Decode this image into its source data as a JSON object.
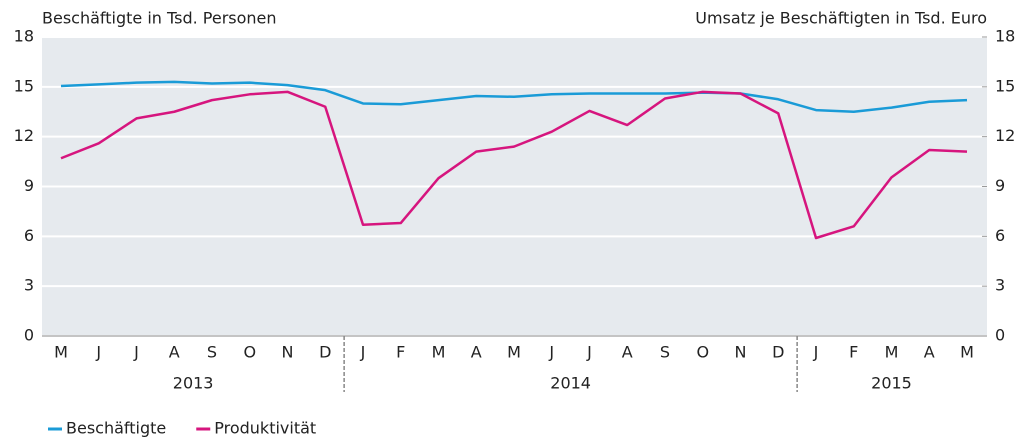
{
  "chart_data": {
    "type": "line",
    "y_label": "Beschäftigte in Tsd. Personen",
    "y2_label": "Umsatz je Beschäftigten in Tsd. Euro",
    "categories": [
      "M",
      "J",
      "J",
      "A",
      "S",
      "O",
      "N",
      "D",
      "J",
      "F",
      "M",
      "A",
      "M",
      "J",
      "J",
      "A",
      "S",
      "O",
      "N",
      "D",
      "J",
      "F",
      "M",
      "A",
      "M"
    ],
    "year_labels": [
      "2013",
      "2014",
      "2015"
    ],
    "series": [
      {
        "name": "Beschäftigte",
        "color": "#1a9bd7",
        "values": [
          15.05,
          15.15,
          15.25,
          15.3,
          15.2,
          15.25,
          15.1,
          14.8,
          14.0,
          13.95,
          14.2,
          14.45,
          14.4,
          14.55,
          14.6,
          14.6,
          14.6,
          14.65,
          14.6,
          14.25,
          13.6,
          13.5,
          13.75,
          14.1,
          14.2
        ]
      },
      {
        "name": "Produktivität",
        "color": "#d6157e",
        "axis": "y2",
        "values": [
          10.7,
          11.6,
          13.1,
          13.5,
          14.2,
          14.55,
          14.7,
          13.8,
          6.7,
          6.8,
          9.5,
          11.1,
          11.4,
          12.3,
          13.55,
          12.7,
          14.3,
          14.7,
          14.6,
          13.4,
          5.9,
          6.6,
          9.55,
          11.2,
          11.1
        ]
      }
    ],
    "ylim": [
      0,
      18
    ],
    "yticks": [
      0,
      3,
      6,
      9,
      12,
      15,
      18
    ],
    "y2lim": [
      0,
      18
    ],
    "y2ticks": [
      0,
      3,
      6,
      9,
      12,
      15,
      18
    ],
    "grid": true
  }
}
